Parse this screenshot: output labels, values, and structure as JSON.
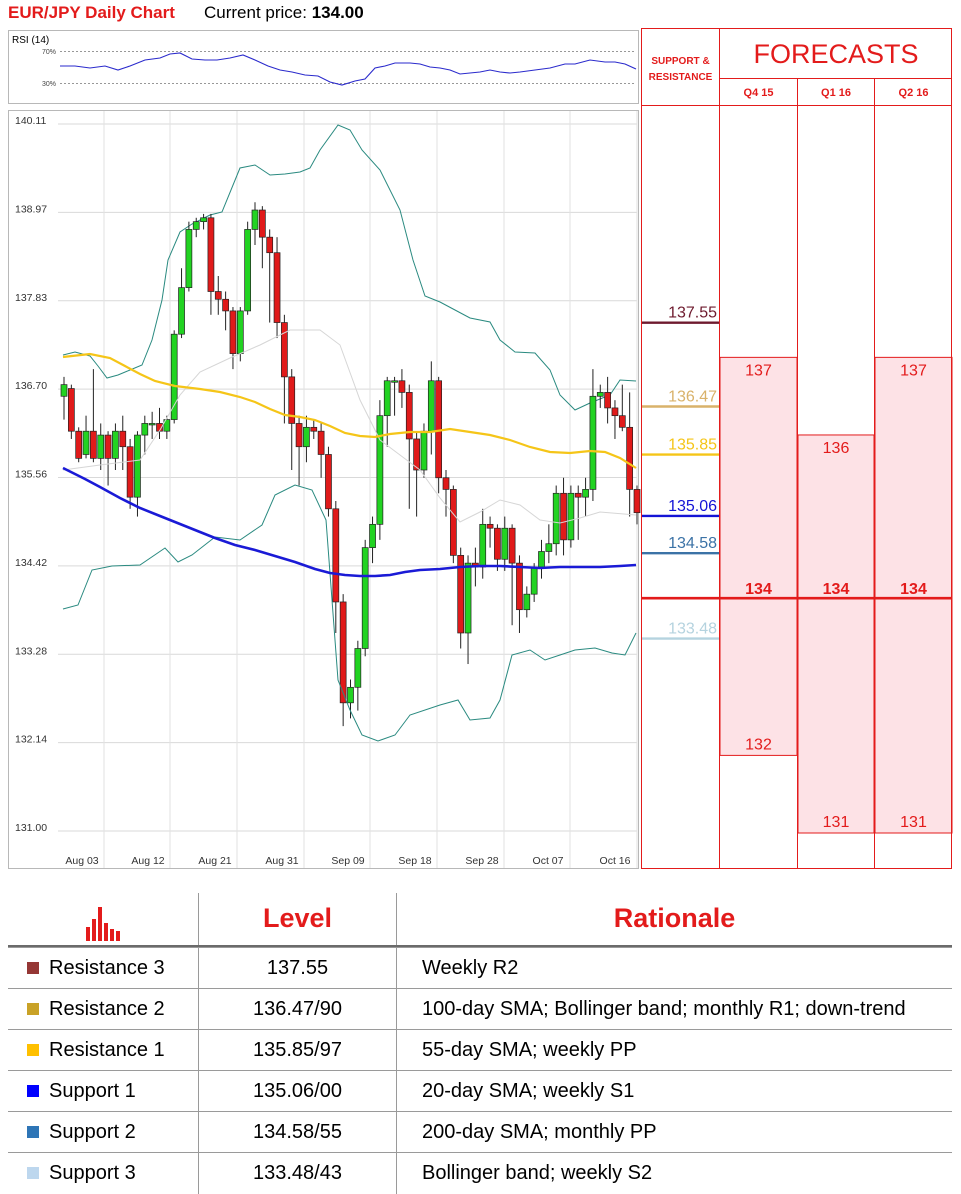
{
  "header": {
    "title": "EUR/JPY Daily Chart",
    "price_label": "Current price:",
    "price_value": "134.00"
  },
  "chart_data": {
    "type": "candlestick",
    "title": "EUR/JPY Daily Chart",
    "y_ticks": [
      "140.11",
      "138.97",
      "137.83",
      "136.70",
      "135.56",
      "134.42",
      "133.28",
      "132.14",
      "131.00"
    ],
    "ylim": [
      131.0,
      140.11
    ],
    "x_ticks": [
      "Aug 03",
      "Aug 12",
      "Aug 21",
      "Aug 31",
      "Sep 09",
      "Sep 18",
      "Sep 28",
      "Oct 07",
      "Oct 16"
    ],
    "candles": [
      [
        136.55,
        136.7,
        136.25,
        136.8
      ],
      [
        136.65,
        136.1,
        136.0,
        136.7
      ],
      [
        136.1,
        135.75,
        135.7,
        136.15
      ],
      [
        135.8,
        136.1,
        135.75,
        136.3
      ],
      [
        136.1,
        135.75,
        135.7,
        136.9
      ],
      [
        135.75,
        136.05,
        135.6,
        136.2
      ],
      [
        136.05,
        135.75,
        135.4,
        136.1
      ],
      [
        135.75,
        136.1,
        135.6,
        136.2
      ],
      [
        136.1,
        135.9,
        135.6,
        136.3
      ],
      [
        135.9,
        135.25,
        135.1,
        136.0
      ],
      [
        135.25,
        136.05,
        135.0,
        136.1
      ],
      [
        136.05,
        136.2,
        135.8,
        136.3
      ],
      [
        136.2,
        136.2,
        136.0,
        136.35
      ],
      [
        136.2,
        136.1,
        136.0,
        136.4
      ],
      [
        136.1,
        136.25,
        136.0,
        136.3
      ],
      [
        136.25,
        137.35,
        136.2,
        137.4
      ],
      [
        137.35,
        137.95,
        137.3,
        138.2
      ],
      [
        137.95,
        138.7,
        137.9,
        138.8
      ],
      [
        138.7,
        138.8,
        138.6,
        138.85
      ],
      [
        138.8,
        138.85,
        138.7,
        138.9
      ],
      [
        138.85,
        137.9,
        137.6,
        138.9
      ],
      [
        137.9,
        137.8,
        137.6,
        138.1
      ],
      [
        137.8,
        137.65,
        137.4,
        137.9
      ],
      [
        137.65,
        137.1,
        136.9,
        137.7
      ],
      [
        137.1,
        137.65,
        137.0,
        137.7
      ],
      [
        137.65,
        138.7,
        137.6,
        138.8
      ],
      [
        138.7,
        138.95,
        138.5,
        139.05
      ],
      [
        138.95,
        138.6,
        138.2,
        139.0
      ],
      [
        138.6,
        138.4,
        137.5,
        138.7
      ],
      [
        138.4,
        137.5,
        137.3,
        138.6
      ],
      [
        137.5,
        136.8,
        136.2,
        137.6
      ],
      [
        136.8,
        136.2,
        135.6,
        136.9
      ],
      [
        136.2,
        135.9,
        135.4,
        136.3
      ],
      [
        135.9,
        136.15,
        135.7,
        136.3
      ],
      [
        136.15,
        136.1,
        136.0,
        136.25
      ],
      [
        136.1,
        135.8,
        135.5,
        136.2
      ],
      [
        135.8,
        135.1,
        135.0,
        135.9
      ],
      [
        135.1,
        133.9,
        133.5,
        135.2
      ],
      [
        133.9,
        132.6,
        132.3,
        134.0
      ],
      [
        132.6,
        132.8,
        132.4,
        132.9
      ],
      [
        132.8,
        133.3,
        132.5,
        133.4
      ],
      [
        133.3,
        134.6,
        133.2,
        134.7
      ],
      [
        134.6,
        134.9,
        134.4,
        135.0
      ],
      [
        134.9,
        136.3,
        134.7,
        136.5
      ],
      [
        136.3,
        136.75,
        135.9,
        136.8
      ],
      [
        136.75,
        136.75,
        136.3,
        136.8
      ],
      [
        136.75,
        136.6,
        136.4,
        136.9
      ],
      [
        136.6,
        136.0,
        135.1,
        136.7
      ],
      [
        136.0,
        135.6,
        135.0,
        136.1
      ],
      [
        135.6,
        136.1,
        135.5,
        136.2
      ],
      [
        136.1,
        136.75,
        135.8,
        137.0
      ],
      [
        136.75,
        135.5,
        135.3,
        136.8
      ],
      [
        135.5,
        135.35,
        135.0,
        135.6
      ],
      [
        135.35,
        134.5,
        134.4,
        135.4
      ],
      [
        134.5,
        133.5,
        133.3,
        134.6
      ],
      [
        133.5,
        134.4,
        133.1,
        134.5
      ],
      [
        134.4,
        134.35,
        134.1,
        134.6
      ],
      [
        134.35,
        134.9,
        134.2,
        135.1
      ],
      [
        134.9,
        134.85,
        134.6,
        135.0
      ],
      [
        134.85,
        134.45,
        134.3,
        134.9
      ],
      [
        134.45,
        134.85,
        134.3,
        135.0
      ],
      [
        134.85,
        134.4,
        133.6,
        134.9
      ],
      [
        134.4,
        133.8,
        133.5,
        134.5
      ],
      [
        133.8,
        134.0,
        133.7,
        134.1
      ],
      [
        134.0,
        134.35,
        133.9,
        134.4
      ],
      [
        134.35,
        134.55,
        134.2,
        134.7
      ],
      [
        134.55,
        134.65,
        134.4,
        134.9
      ],
      [
        134.65,
        135.3,
        134.5,
        135.4
      ],
      [
        135.3,
        134.7,
        134.5,
        135.5
      ],
      [
        134.7,
        135.3,
        134.6,
        135.4
      ],
      [
        135.3,
        135.25,
        134.7,
        135.4
      ],
      [
        135.25,
        135.35,
        135.0,
        135.5
      ],
      [
        135.35,
        136.55,
        135.2,
        136.9
      ],
      [
        136.55,
        136.6,
        136.4,
        136.7
      ],
      [
        136.6,
        136.4,
        136.2,
        136.8
      ],
      [
        136.4,
        136.3,
        136.0,
        136.5
      ],
      [
        136.3,
        136.15,
        136.1,
        136.7
      ],
      [
        136.15,
        135.35,
        135.0,
        136.6
      ],
      [
        135.35,
        135.05,
        134.9,
        135.4
      ]
    ],
    "sma_55": [
      136.85,
      136.86,
      136.87,
      136.86,
      136.85,
      136.8,
      136.75,
      136.68,
      136.6,
      136.52,
      136.46,
      136.4,
      136.35,
      136.32,
      136.3,
      136.28,
      136.26,
      136.24,
      136.21,
      136.17,
      136.13,
      136.08,
      136.04,
      136.0,
      135.97,
      135.94,
      135.92,
      135.9,
      135.88,
      135.87,
      135.86,
      135.86,
      135.86,
      135.87,
      135.88,
      135.89,
      135.9,
      135.9,
      135.9,
      135.89,
      135.88,
      135.87,
      135.86,
      135.85,
      135.84,
      135.83,
      135.82,
      135.81,
      135.8,
      135.79,
      135.78,
      135.77,
      135.76,
      135.75,
      135.74,
      135.73,
      135.72,
      135.71,
      135.7,
      135.69,
      135.68,
      135.67,
      135.66,
      135.65,
      135.64,
      135.63,
      135.62
    ],
    "sma_200": [
      135.7,
      135.6,
      135.5,
      135.4,
      135.3,
      135.2,
      135.1,
      135.0,
      134.9,
      134.8,
      134.7,
      134.6,
      134.55,
      134.5,
      134.45,
      134.4,
      134.38,
      134.36,
      134.36,
      134.37,
      134.38,
      134.4,
      134.4,
      134.41,
      134.41,
      134.42,
      134.43,
      134.43,
      134.44,
      134.44,
      134.45,
      134.45,
      134.46,
      134.46,
      134.47
    ],
    "support_resistance": [
      {
        "label": "137.55",
        "value": 137.55,
        "color": "#6e1a2e"
      },
      {
        "label": "136.47",
        "value": 136.47,
        "color": "#d9b26a"
      },
      {
        "label": "135.85",
        "value": 135.85,
        "color": "#f5c518"
      },
      {
        "label": "135.06",
        "value": 135.06,
        "color": "#1414d6"
      },
      {
        "label": "134.58",
        "value": 134.58,
        "color": "#3b72a6"
      },
      {
        "label": "133.48",
        "value": 133.48,
        "color": "#b5d3df"
      }
    ]
  },
  "rsi_panel": {
    "title": "RSI (14)",
    "level_70": "70%",
    "level_30": "30%"
  },
  "sr_panel": {
    "header_line1": "SUPPORT &",
    "header_line2": "RESISTANCE"
  },
  "forecasts": {
    "title": "FORECASTS",
    "quarters": [
      {
        "label": "Q4 15",
        "high": "137",
        "mid": "134",
        "low": "132",
        "high_v": 137,
        "low_v": 132
      },
      {
        "label": "Q1 16",
        "high": "136",
        "mid": "134",
        "low": "131",
        "high_v": 136,
        "low_v": 131
      },
      {
        "label": "Q2 16",
        "high": "137",
        "mid": "134",
        "low": "131",
        "high_v": 137,
        "low_v": 131
      }
    ],
    "current_value": 134.0
  },
  "table": {
    "headers": {
      "level": "Level",
      "rationale": "Rationale"
    },
    "rows": [
      {
        "name": "Resistance 3",
        "level": "137.55",
        "rationale": "Weekly R2",
        "color": "#953735"
      },
      {
        "name": "Resistance 2",
        "level": "136.47/90",
        "rationale": "100-day SMA; Bollinger band; monthly R1; down-trend",
        "color": "#c9a227"
      },
      {
        "name": "Resistance 1",
        "level": "135.85/97",
        "rationale": "55-day SMA; weekly PP",
        "color": "#ffc000"
      },
      {
        "name": "Support 1",
        "level": "135.06/00",
        "rationale": "20-day SMA; weekly S1",
        "color": "#0000ff"
      },
      {
        "name": "Support 2",
        "level": "134.58/55",
        "rationale": "200-day SMA; monthly PP",
        "color": "#2e75b6"
      },
      {
        "name": "Support 3",
        "level": "133.48/43",
        "rationale": "Bollinger band; weekly S2",
        "color": "#bdd7ee"
      }
    ]
  }
}
